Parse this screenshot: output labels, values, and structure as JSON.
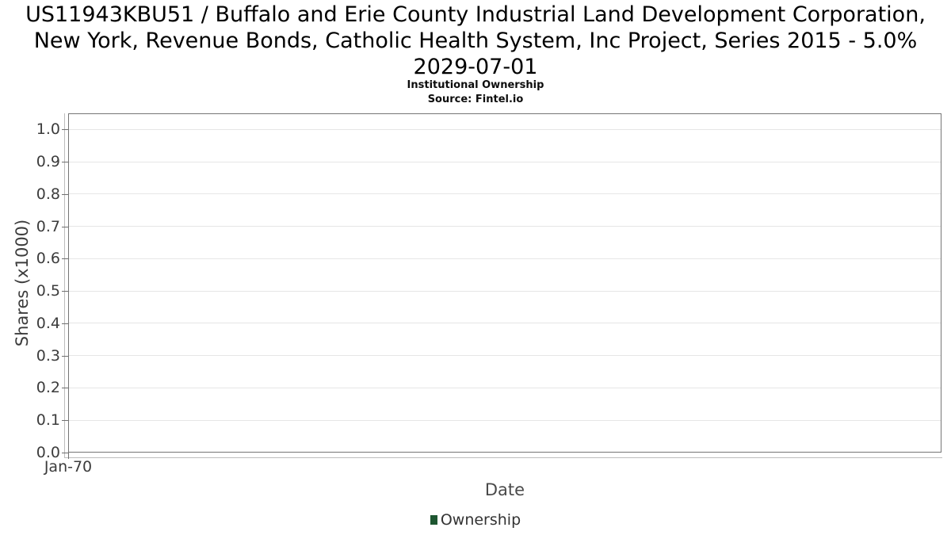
{
  "chart_data": {
    "type": "line",
    "title_lines": [
      "US11943KBU51 / Buffalo and Erie County Industrial Land Development Corporation,",
      "New York, Revenue Bonds, Catholic Health System, Inc Project, Series 2015 - 5.0%",
      "2029-07-01"
    ],
    "subtitle": "Institutional Ownership",
    "source": "Source: Fintel.io",
    "xlabel": "Date",
    "ylabel": "Shares (x1000)",
    "ylim": [
      0.0,
      1.05
    ],
    "y_tick_values": [
      0.0,
      0.1,
      0.2,
      0.3,
      0.4,
      0.5,
      0.6,
      0.7,
      0.8,
      0.9,
      1.0
    ],
    "y_tick_labels": [
      "0.0",
      "0.1",
      "0.2",
      "0.3",
      "0.4",
      "0.5",
      "0.6",
      "0.7",
      "0.8",
      "0.9",
      "1.0"
    ],
    "x_tick_labels": [
      "Jan-70"
    ],
    "grid": "horizontal",
    "legend_position": "bottom",
    "series": [
      {
        "name": "Ownership",
        "color": "#1e5631",
        "x": [],
        "values": []
      }
    ]
  }
}
